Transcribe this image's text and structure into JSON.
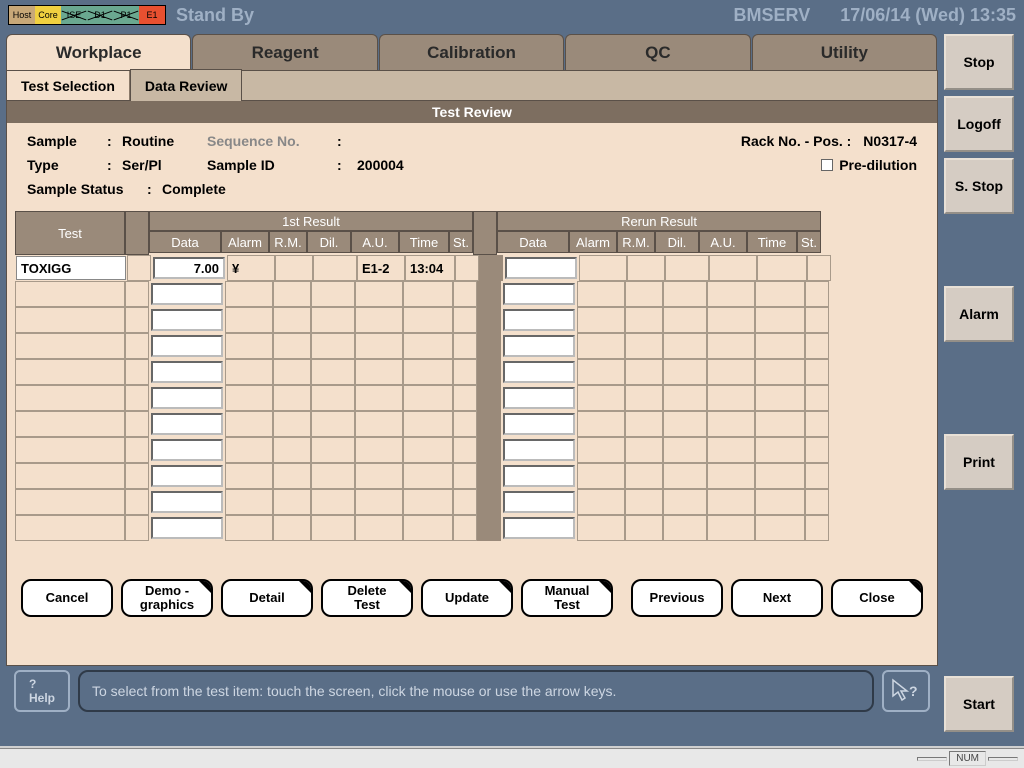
{
  "top": {
    "status_boxes": [
      "Host",
      "Core",
      "ISE",
      "D1",
      "P1",
      "E1"
    ],
    "standby": "Stand By",
    "user": "BMSERV",
    "datetime": "17/06/14 (Wed) 13:35"
  },
  "main_tabs": [
    "Workplace",
    "Reagent",
    "Calibration",
    "QC",
    "Utility"
  ],
  "sub_tabs": [
    "Test Selection",
    "Data Review"
  ],
  "panel_title": "Test Review",
  "info": {
    "sample_lbl": "Sample",
    "sample_val": "Routine",
    "seq_lbl": "Sequence No.",
    "seq_val": "",
    "rack_lbl": "Rack No. - Pos. :",
    "rack_val": "N0317-4",
    "type_lbl": "Type",
    "type_val": "Ser/Pl",
    "sid_lbl": "Sample ID",
    "sid_val": "200004",
    "predil_lbl": "Pre-dilution",
    "status_lbl": "Sample Status",
    "status_val": "Complete"
  },
  "table": {
    "test_hdr": "Test",
    "group1": "1st Result",
    "group2": "Rerun Result",
    "cols": [
      "Data",
      "Alarm",
      "R.M.",
      "Dil.",
      "A.U.",
      "Time",
      "St."
    ],
    "rows": [
      {
        "test": "TOXIGG",
        "data": "7.00",
        "alarm": "¥",
        "rm": "",
        "dil": "",
        "au": "E1-2",
        "time": "13:04",
        "st": "",
        "r_data": "",
        "r_alarm": "",
        "r_rm": "",
        "r_dil": "",
        "r_au": "",
        "r_time": "",
        "r_st": ""
      },
      {
        "test": "",
        "data": "",
        "alarm": "",
        "rm": "",
        "dil": "",
        "au": "",
        "time": "",
        "st": "",
        "r_data": "",
        "r_alarm": "",
        "r_rm": "",
        "r_dil": "",
        "r_au": "",
        "r_time": "",
        "r_st": ""
      },
      {
        "test": "",
        "data": "",
        "alarm": "",
        "rm": "",
        "dil": "",
        "au": "",
        "time": "",
        "st": "",
        "r_data": "",
        "r_alarm": "",
        "r_rm": "",
        "r_dil": "",
        "r_au": "",
        "r_time": "",
        "r_st": ""
      },
      {
        "test": "",
        "data": "",
        "alarm": "",
        "rm": "",
        "dil": "",
        "au": "",
        "time": "",
        "st": "",
        "r_data": "",
        "r_alarm": "",
        "r_rm": "",
        "r_dil": "",
        "r_au": "",
        "r_time": "",
        "r_st": ""
      },
      {
        "test": "",
        "data": "",
        "alarm": "",
        "rm": "",
        "dil": "",
        "au": "",
        "time": "",
        "st": "",
        "r_data": "",
        "r_alarm": "",
        "r_rm": "",
        "r_dil": "",
        "r_au": "",
        "r_time": "",
        "r_st": ""
      },
      {
        "test": "",
        "data": "",
        "alarm": "",
        "rm": "",
        "dil": "",
        "au": "",
        "time": "",
        "st": "",
        "r_data": "",
        "r_alarm": "",
        "r_rm": "",
        "r_dil": "",
        "r_au": "",
        "r_time": "",
        "r_st": ""
      },
      {
        "test": "",
        "data": "",
        "alarm": "",
        "rm": "",
        "dil": "",
        "au": "",
        "time": "",
        "st": "",
        "r_data": "",
        "r_alarm": "",
        "r_rm": "",
        "r_dil": "",
        "r_au": "",
        "r_time": "",
        "r_st": ""
      },
      {
        "test": "",
        "data": "",
        "alarm": "",
        "rm": "",
        "dil": "",
        "au": "",
        "time": "",
        "st": "",
        "r_data": "",
        "r_alarm": "",
        "r_rm": "",
        "r_dil": "",
        "r_au": "",
        "r_time": "",
        "r_st": ""
      },
      {
        "test": "",
        "data": "",
        "alarm": "",
        "rm": "",
        "dil": "",
        "au": "",
        "time": "",
        "st": "",
        "r_data": "",
        "r_alarm": "",
        "r_rm": "",
        "r_dil": "",
        "r_au": "",
        "r_time": "",
        "r_st": ""
      },
      {
        "test": "",
        "data": "",
        "alarm": "",
        "rm": "",
        "dil": "",
        "au": "",
        "time": "",
        "st": "",
        "r_data": "",
        "r_alarm": "",
        "r_rm": "",
        "r_dil": "",
        "r_au": "",
        "r_time": "",
        "r_st": ""
      },
      {
        "test": "",
        "data": "",
        "alarm": "",
        "rm": "",
        "dil": "",
        "au": "",
        "time": "",
        "st": "",
        "r_data": "",
        "r_alarm": "",
        "r_rm": "",
        "r_dil": "",
        "r_au": "",
        "r_time": "",
        "r_st": ""
      }
    ]
  },
  "buttons": {
    "cancel": "Cancel",
    "demo": "Demo -\ngraphics",
    "detail": "Detail",
    "delete": "Delete\nTest",
    "update": "Update",
    "manual": "Manual\nTest",
    "prev": "Previous",
    "next": "Next",
    "close": "Close"
  },
  "help": {
    "btn": "?\nHelp",
    "msg": "To select from the test item: touch the screen, click the mouse or use the arrow keys."
  },
  "side": {
    "stop": "Stop",
    "logoff": "Logoff",
    "sstop": "S. Stop",
    "alarm": "Alarm",
    "print": "Print",
    "start": "Start"
  },
  "statusbar": {
    "num": "NUM"
  },
  "colors": {
    "bg_main": "#5a6e87",
    "panel_bg": "#f4e0cc",
    "tab_inactive": "#9a8a7a",
    "panel_title": "#7d6e60"
  }
}
